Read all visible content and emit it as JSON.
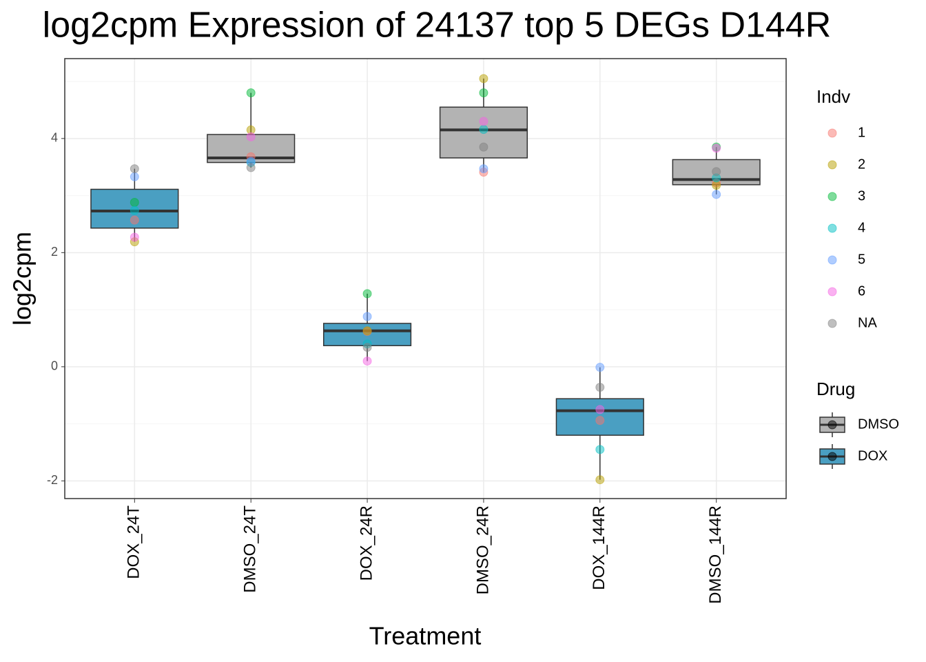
{
  "chart_data": {
    "type": "box",
    "title": "log2cpm Expression of 24137 top 5 DEGs D144R",
    "x_label": "Treatment",
    "y_label": "log2cpm",
    "categories": [
      "DOX_24T",
      "DMSO_24T",
      "DOX_24R",
      "DMSO_24R",
      "DOX_144R",
      "DMSO_144R"
    ],
    "ylim": [
      -2.31,
      5.4
    ],
    "yticks": [
      -2,
      0,
      2,
      4
    ],
    "grid": true,
    "boxes": [
      {
        "min": 2.19,
        "q1": 2.43,
        "median": 2.73,
        "q3": 3.11,
        "max": 3.47,
        "color": "#4a9fc2"
      },
      {
        "min": 3.49,
        "q1": 3.58,
        "median": 3.66,
        "q3": 4.07,
        "max": 4.8,
        "color": "#b3b3b3"
      },
      {
        "min": 0.1,
        "q1": 0.37,
        "median": 0.63,
        "q3": 0.76,
        "max": 1.28,
        "color": "#4a9fc2"
      },
      {
        "min": 3.41,
        "q1": 3.66,
        "median": 4.15,
        "q3": 4.55,
        "max": 5.05,
        "color": "#b3b3b3"
      },
      {
        "min": -1.98,
        "q1": -1.2,
        "median": -0.77,
        "q3": -0.56,
        "max": -0.01,
        "color": "#4a9fc2"
      },
      {
        "min": 3.02,
        "q1": 3.19,
        "median": 3.28,
        "q3": 3.63,
        "max": 3.85,
        "color": "#b3b3b3"
      }
    ],
    "legend_title": "Indv",
    "series": [
      {
        "name": "1",
        "color": "#F8766D",
        "values": [
          2.57,
          3.68,
          0.62,
          3.41,
          -0.94,
          3.22
        ]
      },
      {
        "name": "2",
        "color": "#B79F00",
        "values": [
          2.19,
          4.15,
          0.63,
          5.05,
          -1.98,
          3.18
        ]
      },
      {
        "name": "3",
        "color": "#00BA38",
        "values": [
          2.88,
          4.8,
          1.28,
          4.8,
          null,
          3.85
        ]
      },
      {
        "name": "4",
        "color": "#00BFC4",
        "values": [
          2.74,
          3.58,
          0.4,
          4.16,
          -1.45,
          3.31
        ]
      },
      {
        "name": "5",
        "color": "#619CFF",
        "values": [
          3.33,
          3.6,
          0.88,
          3.47,
          -0.01,
          3.02
        ]
      },
      {
        "name": "6",
        "color": "#F564E3",
        "values": [
          2.27,
          4.03,
          0.1,
          4.3,
          -0.75,
          3.83
        ]
      },
      {
        "name": "NA",
        "color": "#7f7f7f",
        "values": [
          3.47,
          3.49,
          0.34,
          3.85,
          -0.36,
          3.42
        ]
      }
    ],
    "drug_legend_title": "Drug",
    "drugs": [
      {
        "name": "DMSO",
        "color": "#b3b3b3"
      },
      {
        "name": "DOX",
        "color": "#4a9fc2"
      }
    ]
  }
}
